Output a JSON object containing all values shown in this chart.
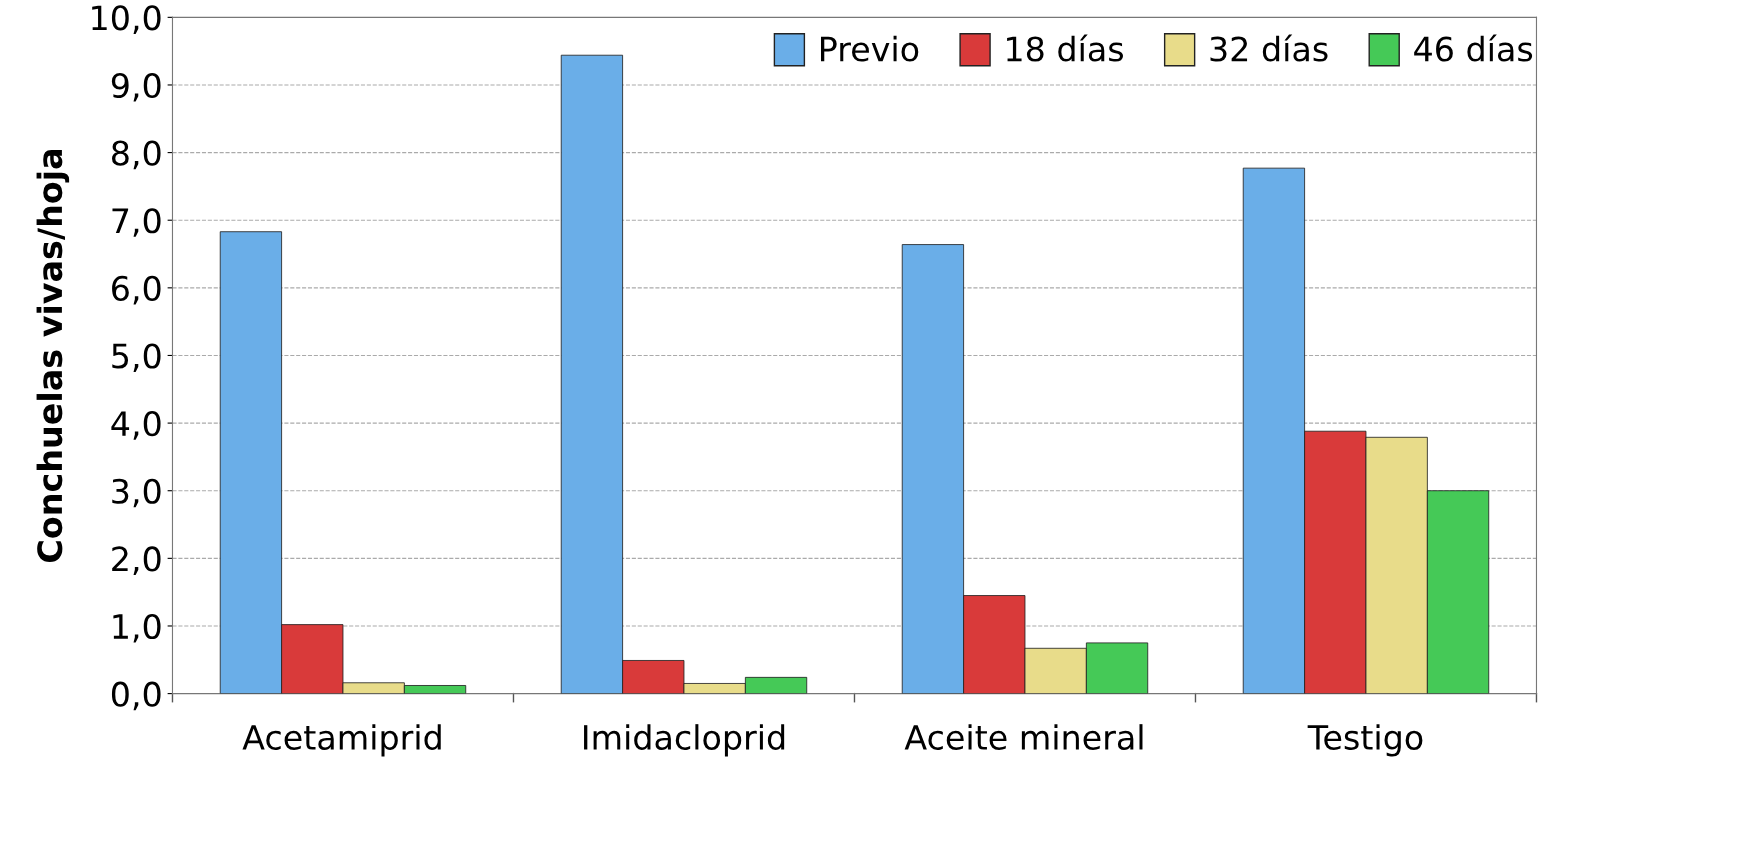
{
  "chart_data": {
    "type": "bar",
    "ylabel": "Conchuelas vivas/hoja",
    "categories": [
      "Acetamiprid",
      "Imidacloprid",
      "Aceite mineral",
      "Testigo"
    ],
    "series": [
      {
        "name": "Previo",
        "color": "#6aaee8",
        "values": [
          6.83,
          9.44,
          6.64,
          7.77
        ]
      },
      {
        "name": "18 días",
        "color": "#d93a3a",
        "values": [
          1.02,
          0.49,
          1.45,
          3.88
        ]
      },
      {
        "name": "32 días",
        "color": "#e8dc8a",
        "values": [
          0.16,
          0.15,
          0.67,
          3.79
        ]
      },
      {
        "name": "46 días",
        "color": "#45c957",
        "values": [
          0.12,
          0.24,
          0.75,
          3.0
        ]
      }
    ],
    "ylim": [
      0,
      10
    ],
    "yticks": [
      {
        "value": 0,
        "label": "0,0"
      },
      {
        "value": 1,
        "label": "1,0"
      },
      {
        "value": 2,
        "label": "2,0"
      },
      {
        "value": 3,
        "label": "3,0"
      },
      {
        "value": 4,
        "label": "4,0"
      },
      {
        "value": 5,
        "label": "5,0"
      },
      {
        "value": 6,
        "label": "6,0"
      },
      {
        "value": 7,
        "label": "7,0"
      },
      {
        "value": 8,
        "label": "8,0"
      },
      {
        "value": 9,
        "label": "9,0"
      },
      {
        "value": 10,
        "label": "10,0"
      }
    ],
    "grid": "y",
    "legend": "top right"
  }
}
